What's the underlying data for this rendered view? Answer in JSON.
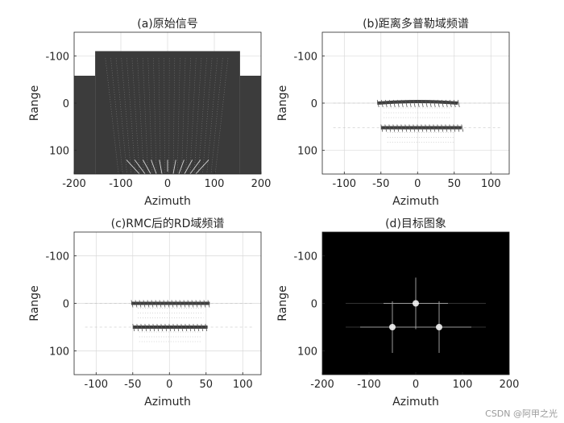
{
  "chart_data": [
    {
      "id": "a",
      "type": "heatmap",
      "title": "(a)原始信号",
      "xlabel": "Azimuth",
      "ylabel": "Range",
      "xlim": [
        -200,
        200
      ],
      "ylim": [
        150,
        -150
      ],
      "xticks": [
        -200,
        -100,
        0,
        100,
        200
      ],
      "yticks": [
        -100,
        0,
        100
      ],
      "grid": true,
      "colormap": "gray",
      "background": "#ffffff",
      "regions": [
        {
          "x": [
            -200,
            -155
          ],
          "y": [
            -58,
            150
          ],
          "tone": "#3c3c3c"
        },
        {
          "x": [
            -155,
            155
          ],
          "y": [
            -110,
            150
          ],
          "tone": "#3a3a3a"
        },
        {
          "x": [
            155,
            200
          ],
          "y": [
            -58,
            150
          ],
          "tone": "#3c3c3c"
        }
      ]
    },
    {
      "id": "b",
      "type": "heatmap",
      "title": "(b)距离多普勒域频谱",
      "xlabel": "Azimuth",
      "ylabel": "Range",
      "xlim": [
        -130,
        125
      ],
      "ylim": [
        150,
        -150
      ],
      "xticks": [
        -100,
        -50,
        0,
        50,
        100
      ],
      "yticks": [
        -100,
        0,
        100
      ],
      "grid": true,
      "colormap": "gray",
      "background": "#ffffff",
      "bands": [
        {
          "y": 0,
          "x": [
            -55,
            55
          ],
          "curve": -4
        },
        {
          "y": 52,
          "x": [
            -50,
            60
          ],
          "curve": 0
        }
      ]
    },
    {
      "id": "c",
      "type": "heatmap",
      "title": "(c)RMC后的RD域频谱",
      "xlabel": "Azimuth",
      "ylabel": "Range",
      "xlim": [
        -130,
        125
      ],
      "ylim": [
        150,
        -150
      ],
      "xticks": [
        -100,
        -50,
        0,
        50,
        100
      ],
      "yticks": [
        -100,
        0,
        100
      ],
      "grid": true,
      "colormap": "gray",
      "background": "#ffffff",
      "bands": [
        {
          "y": 0,
          "x": [
            -52,
            55
          ],
          "curve": 0
        },
        {
          "y": 50,
          "x": [
            -50,
            52
          ],
          "curve": 0
        }
      ]
    },
    {
      "id": "d",
      "type": "heatmap",
      "title": "(d)目标图象",
      "xlabel": "Azimuth",
      "ylabel": "Range",
      "xlim": [
        -200,
        200
      ],
      "ylim": [
        150,
        -150
      ],
      "xticks": [
        -200,
        -100,
        0,
        100,
        200
      ],
      "yticks": [
        -100,
        0,
        100
      ],
      "grid": false,
      "colormap": "gray",
      "background": "#000000",
      "points": [
        {
          "x": 0,
          "y": 0
        },
        {
          "x": -50,
          "y": 50
        },
        {
          "x": 50,
          "y": 50
        }
      ]
    }
  ],
  "watermark": "CSDN @阿甲之光"
}
